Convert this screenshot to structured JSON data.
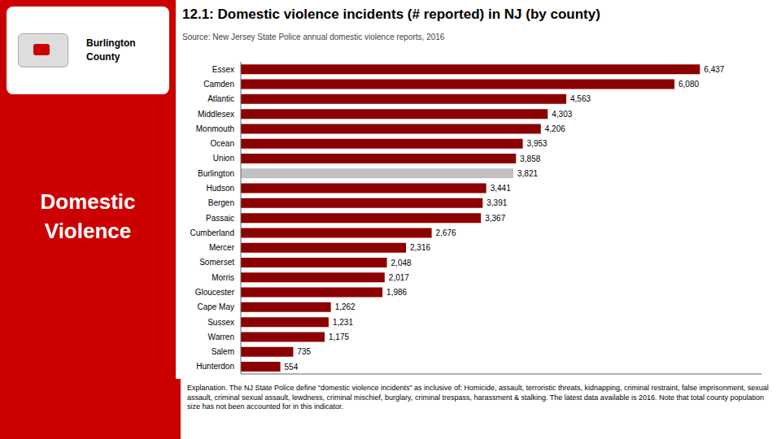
{
  "chart_data": {
    "type": "bar",
    "orientation": "horizontal",
    "title": "12.1: Domestic violence incidents (# reported) in NJ (by county)",
    "subtitle": "Source: New Jersey State Police annual domestic violence reports, 2016",
    "annotations": [
      "Burlington\nCounty",
      "Domestic\nViolence",
      "Explanation. The NJ State Police define “domestic violence incidents”  as inclusive of: Homicide, assault, terroristic threats, kidnapping, criminal restraint, false imprisonment, sexual assault, criminal sexual assault, lewdness, criminal mischief, burglary, criminal trespass, harassment & stalking.  The latest data available is 2016. Note that total county population size has not been accounted for in this indicator."
    ],
    "categories": [
      "Essex",
      "Camden",
      "Atlantic",
      "Middlesex",
      "Monmouth",
      "Ocean",
      "Union",
      "Burlington",
      "Hudson",
      "Bergen",
      "Passaic",
      "Cumberland",
      "Mercer",
      "Somerset",
      "Morris",
      "Gloucester",
      "Cape May",
      "Sussex",
      "Warren",
      "Salem",
      "Hunterdon"
    ],
    "values": [
      6437,
      6080,
      4563,
      4303,
      4206,
      3953,
      3858,
      3821,
      3441,
      3391,
      3367,
      2676,
      2316,
      2048,
      2017,
      1986,
      1262,
      1231,
      1175,
      735,
      554
    ],
    "value_labels": [
      "6,437",
      "6,080",
      "4,563",
      "4,303",
      "4,206",
      "3,953",
      "3,858",
      "3,821",
      "3,441",
      "3,391",
      "3,367",
      "2,676",
      "2,316",
      "2,048",
      "2,017",
      "1,986",
      "1,262",
      "1,231",
      "1,175",
      "735",
      "554"
    ],
    "colors": [
      "#8B0000",
      "#8B0000",
      "#8B0000",
      "#8B0000",
      "#8B0000",
      "#8B0000",
      "#8B0000",
      "#C0C0C0",
      "#8B0000",
      "#8B0000",
      "#8B0000",
      "#8B0000",
      "#8B0000",
      "#8B0000",
      "#8B0000",
      "#8B0000",
      "#8B0000",
      "#8B0000",
      "#8B0000",
      "#8B0000",
      "#8B0000"
    ],
    "xlim": [
      0,
      7300
    ],
    "data_labels": true,
    "tick_labels": "y",
    "grid": false
  }
}
